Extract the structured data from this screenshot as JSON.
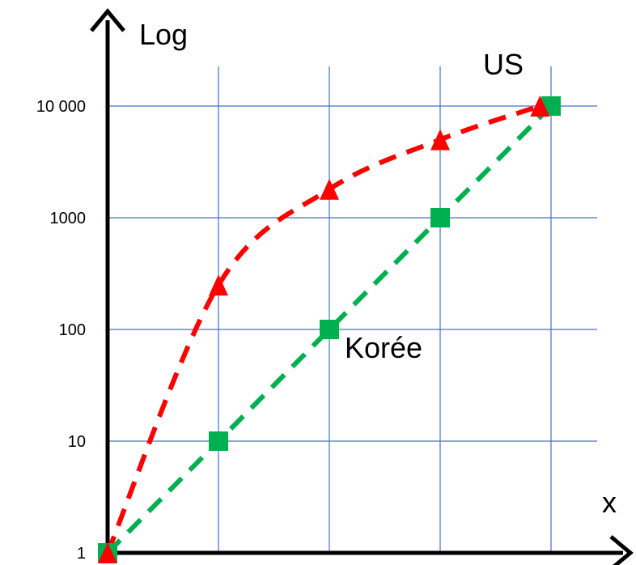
{
  "chart_data": {
    "type": "line",
    "ylabel": "Log",
    "xlabel": "x",
    "yscale": "log",
    "ylim": [
      1,
      10000
    ],
    "xlim": [
      0,
      4
    ],
    "grid": true,
    "y_ticks": [
      {
        "value": 1,
        "label": "1"
      },
      {
        "value": 10,
        "label": "10"
      },
      {
        "value": 100,
        "label": "100"
      },
      {
        "value": 1000,
        "label": "1000"
      },
      {
        "value": 10000,
        "label": "10 000"
      }
    ],
    "x_gridlines": [
      1,
      2,
      3,
      4
    ],
    "series": [
      {
        "name": "US",
        "color": "#ff0000",
        "marker": "triangle",
        "line_style": "dashed",
        "points": [
          [
            0,
            1
          ],
          [
            1,
            250
          ],
          [
            2,
            1800
          ],
          [
            3,
            5000
          ],
          [
            3.9,
            10000
          ]
        ]
      },
      {
        "name": "Korée",
        "color": "#00b050",
        "marker": "square",
        "line_style": "dashed",
        "points": [
          [
            0,
            1
          ],
          [
            1,
            10
          ],
          [
            2,
            100
          ],
          [
            3,
            1000
          ],
          [
            4,
            10000
          ]
        ]
      }
    ],
    "grid_color": "#4472c4",
    "axis_color": "#000000"
  }
}
